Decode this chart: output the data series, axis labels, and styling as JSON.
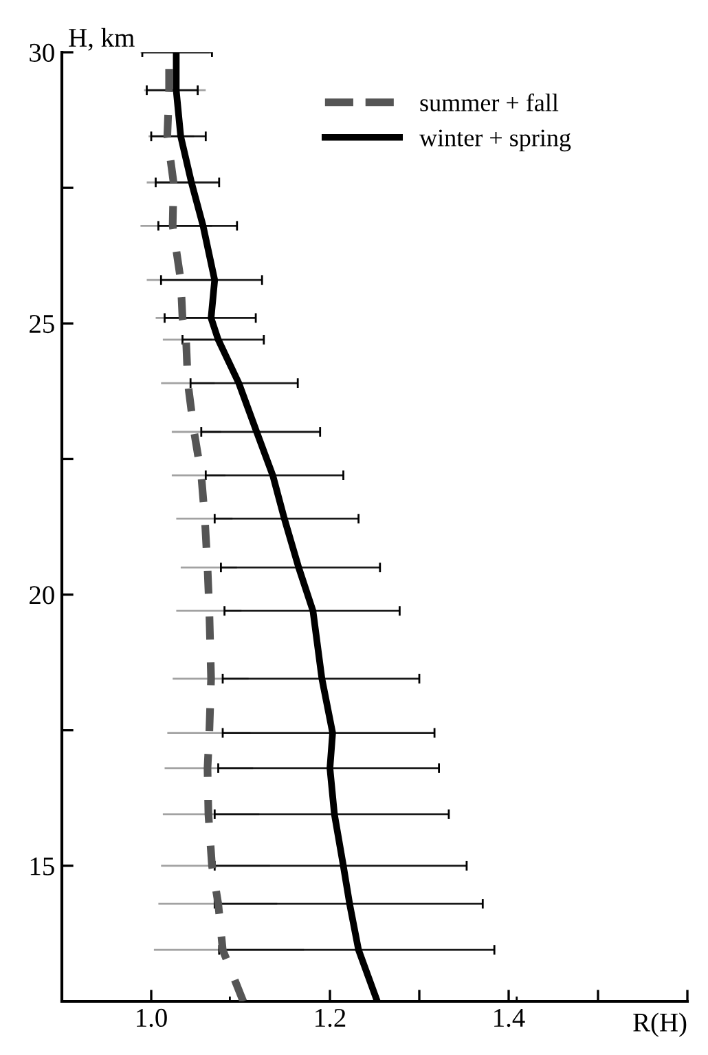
{
  "chart_data": {
    "type": "line",
    "xlabel": "R(H)",
    "ylabel": "H, km",
    "xlim": [
      0.9,
      1.6
    ],
    "xticks": [
      {
        "value": 1.0,
        "label": "1.0"
      },
      {
        "value": 1.1,
        "label": null
      },
      {
        "value": 1.2,
        "label": "1.2"
      },
      {
        "value": 1.3,
        "label": null
      },
      {
        "value": 1.4,
        "label": "1.4"
      },
      {
        "value": 1.5,
        "label": null
      },
      {
        "value": 1.6,
        "label": null
      }
    ],
    "ylim": [
      12.5,
      30
    ],
    "yticks": [
      15,
      {
        "value": 17.5,
        "label": null
      },
      20,
      {
        "value": 22.5,
        "label": null
      },
      25,
      {
        "value": 27.5,
        "label": null
      },
      30
    ],
    "grid": false,
    "legend": "top right",
    "marker": "none",
    "series": [
      {
        "name": "summer + fall",
        "color": "#555555",
        "line_style": "dashed",
        "x": [
          1.103,
          1.08,
          1.075,
          1.068,
          1.064,
          1.063,
          1.065,
          1.067,
          1.065,
          1.063,
          1.06,
          1.056,
          1.048,
          1.041,
          1.039,
          1.035,
          1.033,
          1.024,
          1.025,
          1.018,
          1.02,
          1.02
        ],
        "values": [
          12.5,
          13.45,
          14.3,
          15,
          15.95,
          16.8,
          17.45,
          18.45,
          19.7,
          20.5,
          21.4,
          22.2,
          23.0,
          23.9,
          24.7,
          25.1,
          25.8,
          26.8,
          27.6,
          28.45,
          29.3,
          30
        ],
        "xerrors": [
          [
            0.99,
            1.197
          ],
          [
            1.003,
            1.171
          ],
          [
            1.008,
            1.141
          ],
          [
            1.011,
            1.133
          ],
          [
            1.013,
            1.121
          ],
          [
            1.015,
            1.114
          ],
          [
            1.018,
            1.111
          ],
          [
            1.024,
            1.109
          ],
          [
            1.028,
            1.101
          ],
          [
            1.033,
            1.096
          ],
          [
            1.028,
            1.091
          ],
          [
            1.023,
            1.083
          ],
          [
            1.023,
            1.078
          ],
          [
            1.011,
            1.071
          ],
          [
            1.013,
            1.068
          ],
          [
            1.005,
            1.071
          ],
          [
            0.995,
            1.073
          ],
          [
            0.988,
            1.068
          ],
          [
            0.995,
            1.045
          ],
          [
            0.997,
            1.048
          ],
          [
            0.992,
            1.061
          ],
          [
            0.988,
            1.065
          ]
        ]
      },
      {
        "name": "winter + spring",
        "color": "#000000",
        "line_style": "solid",
        "x": [
          1.253,
          1.232,
          1.222,
          1.215,
          1.205,
          1.2,
          1.203,
          1.191,
          1.181,
          1.165,
          1.149,
          1.136,
          1.118,
          1.098,
          1.075,
          1.067,
          1.071,
          1.058,
          1.045,
          1.033,
          1.028,
          1.028
        ],
        "values": [
          12.5,
          13.45,
          14.3,
          15,
          15.95,
          16.8,
          17.45,
          18.45,
          19.7,
          20.5,
          21.4,
          22.2,
          23.0,
          23.9,
          24.7,
          25.1,
          25.8,
          26.8,
          27.6,
          28.45,
          29.3,
          30
        ],
        "xerrors": [
          [
            1.088,
            1.409
          ],
          [
            1.076,
            1.384
          ],
          [
            1.071,
            1.371
          ],
          [
            1.071,
            1.353
          ],
          [
            1.071,
            1.333
          ],
          [
            1.075,
            1.322
          ],
          [
            1.08,
            1.317
          ],
          [
            1.08,
            1.3
          ],
          [
            1.082,
            1.278
          ],
          [
            1.078,
            1.256
          ],
          [
            1.071,
            1.232
          ],
          [
            1.061,
            1.215
          ],
          [
            1.056,
            1.189
          ],
          [
            1.044,
            1.164
          ],
          [
            1.035,
            1.126
          ],
          [
            1.015,
            1.117
          ],
          [
            1.011,
            1.124
          ],
          [
            1.008,
            1.096
          ],
          [
            1.005,
            1.076
          ],
          [
            1.0,
            1.061
          ],
          [
            0.995,
            1.052
          ],
          [
            0.99,
            1.068
          ]
        ]
      }
    ]
  }
}
